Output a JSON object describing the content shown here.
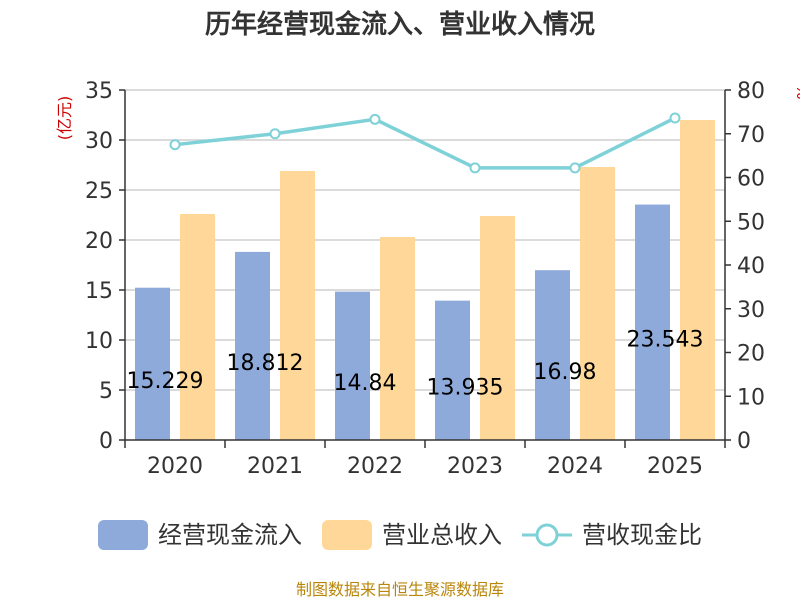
{
  "chart_data": {
    "type": "bar",
    "title": "历年经营现金流入、营业收入情况",
    "categories": [
      "2020",
      "2021",
      "2022",
      "2023",
      "2024",
      "2025"
    ],
    "series": [
      {
        "name": "经营现金流入",
        "type": "bar",
        "axis": "left",
        "color": "#8eaadb",
        "values": [
          15.229,
          18.812,
          14.84,
          13.935,
          16.98,
          23.543
        ],
        "labels": [
          "15.229",
          "18.812",
          "14.84",
          "13.935",
          "16.98",
          "23.543"
        ]
      },
      {
        "name": "营业总收入",
        "type": "bar",
        "axis": "left",
        "color": "#ffd899",
        "values": [
          22.6,
          26.9,
          20.3,
          22.4,
          27.3,
          32.0
        ]
      },
      {
        "name": "营收现金比",
        "type": "line",
        "axis": "right",
        "color": "#7fd1d8",
        "values": [
          67.5,
          70.0,
          73.3,
          62.2,
          62.2,
          73.6
        ]
      }
    ],
    "y_left": {
      "unit": "(亿元)",
      "min": 0,
      "max": 35,
      "ticks": [
        "0",
        "5",
        "10",
        "15",
        "20",
        "25",
        "30",
        "35"
      ]
    },
    "y_right": {
      "unit": "%",
      "min": 0,
      "max": 80,
      "ticks": [
        "0",
        "10",
        "20",
        "30",
        "40",
        "50",
        "60",
        "70",
        "80"
      ]
    },
    "grid": true,
    "legend_position": "bottom"
  },
  "footer": {
    "source": "制图数据来自恒生聚源数据库"
  }
}
